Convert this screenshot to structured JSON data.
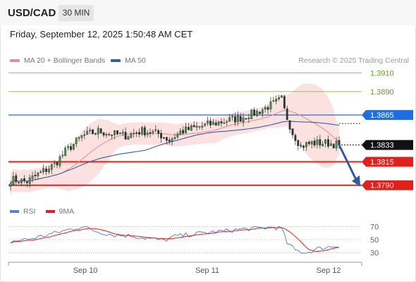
{
  "header": {
    "symbol": "USD/CAD",
    "timeframe": "30 MIN"
  },
  "datetime": "Friday, September 12, 2025 1:50:48 AM CET",
  "legend": {
    "ma20": {
      "label": "MA 20 + Bollinger Bands",
      "color": "#f08a8a"
    },
    "ma50": {
      "label": "MA 50",
      "color": "#35609e"
    }
  },
  "credit": "Research © 2025 Trading Central",
  "rsi_legend": {
    "rsi": {
      "label": "RSI",
      "color": "#5b7fd6"
    },
    "ma9": {
      "label": "9MA",
      "color": "#e0201b"
    }
  },
  "chart_data": {
    "type": "candlestick",
    "price_range": [
      1.3777,
      1.3914
    ],
    "levels": [
      {
        "value": 1.391,
        "label": "1.3910",
        "style": "green-line",
        "color": "#8cc63f"
      },
      {
        "value": 1.389,
        "label": "1.3890",
        "style": "green-line",
        "color": "#8cc63f"
      },
      {
        "value": 1.3865,
        "label": "1.3865",
        "style": "resistance",
        "color": "#1f6ee0"
      },
      {
        "value": 1.3833,
        "label": "1.3833",
        "style": "last-price",
        "color": "#111111"
      },
      {
        "value": 1.3815,
        "label": "1.3815",
        "style": "support",
        "color": "#e0201b"
      },
      {
        "value": 1.379,
        "label": "1.3790",
        "style": "support",
        "color": "#e0201b"
      }
    ],
    "forecast": {
      "from": 1.3833,
      "to": 1.379,
      "direction": "down"
    },
    "x_ticks": [
      "Sep 10",
      "Sep 11",
      "Sep 12"
    ],
    "rsi": {
      "range": [
        20,
        80
      ],
      "ticks": [
        70,
        50,
        30
      ]
    },
    "waypoints": [
      [
        0,
        1.3796
      ],
      [
        6,
        1.3794
      ],
      [
        12,
        1.3805
      ],
      [
        16,
        1.3812
      ],
      [
        20,
        1.3826
      ],
      [
        26,
        1.3842
      ],
      [
        32,
        1.3848
      ],
      [
        36,
        1.3845
      ],
      [
        42,
        1.3843
      ],
      [
        48,
        1.3848
      ],
      [
        54,
        1.3845
      ],
      [
        58,
        1.3838
      ],
      [
        62,
        1.3847
      ],
      [
        68,
        1.3852
      ],
      [
        76,
        1.3857
      ],
      [
        84,
        1.3862
      ],
      [
        90,
        1.3868
      ],
      [
        96,
        1.3877
      ],
      [
        99,
        1.3882
      ],
      [
        100,
        1.387
      ],
      [
        103,
        1.3846
      ],
      [
        106,
        1.3832
      ],
      [
        110,
        1.3835
      ],
      [
        116,
        1.3835
      ],
      [
        120,
        1.3833
      ]
    ],
    "rsi_waypoints": [
      [
        0,
        47
      ],
      [
        8,
        52
      ],
      [
        16,
        60
      ],
      [
        22,
        66
      ],
      [
        26,
        70
      ],
      [
        32,
        62
      ],
      [
        38,
        57
      ],
      [
        44,
        56
      ],
      [
        50,
        52
      ],
      [
        56,
        49
      ],
      [
        60,
        55
      ],
      [
        66,
        58
      ],
      [
        72,
        61
      ],
      [
        78,
        63
      ],
      [
        84,
        66
      ],
      [
        90,
        67
      ],
      [
        96,
        69
      ],
      [
        99,
        67
      ],
      [
        101,
        45
      ],
      [
        104,
        34
      ],
      [
        108,
        30
      ],
      [
        112,
        36
      ],
      [
        116,
        39
      ],
      [
        120,
        41
      ]
    ]
  }
}
